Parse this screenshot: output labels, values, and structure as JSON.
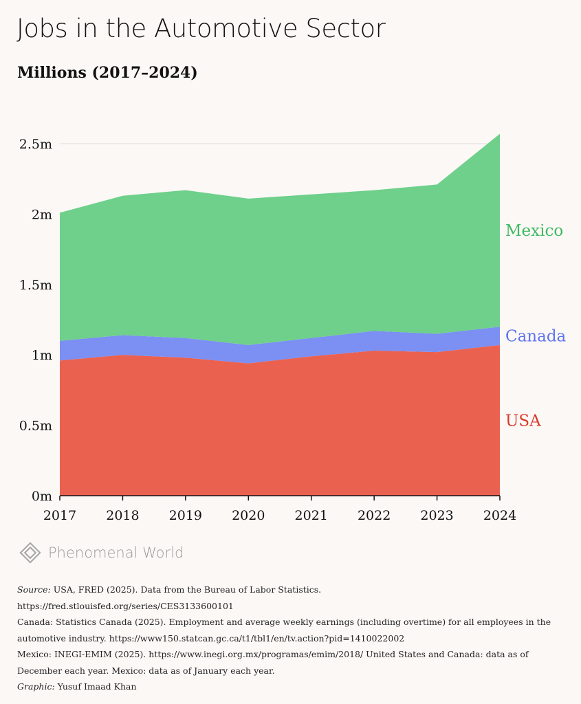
{
  "title": "Jobs in the Automotive Sector",
  "subtitle": "Millions (2017–2024)",
  "brand": "Phenomenal World",
  "chart_data": {
    "type": "area",
    "stacked": true,
    "x": [
      2017,
      2018,
      2019,
      2020,
      2021,
      2022,
      2023,
      2024
    ],
    "ylim": [
      0,
      2.5
    ],
    "yticks": [
      0,
      0.5,
      1,
      1.5,
      2,
      2.5
    ],
    "ytick_labels": [
      "0m",
      "0.5m",
      "1m",
      "1.5m",
      "2m",
      "2.5m"
    ],
    "grid": true,
    "series": [
      {
        "name": "USA",
        "color": "#ea6150",
        "values": [
          0.96,
          1.0,
          0.98,
          0.94,
          0.99,
          1.03,
          1.02,
          1.07
        ]
      },
      {
        "name": "Canada",
        "color": "#7c8ff2",
        "values": [
          0.14,
          0.14,
          0.14,
          0.13,
          0.13,
          0.14,
          0.13,
          0.13
        ]
      },
      {
        "name": "Mexico",
        "color": "#6ed08b",
        "values": [
          0.91,
          0.99,
          1.05,
          1.04,
          1.02,
          1.0,
          1.06,
          1.37
        ]
      }
    ]
  },
  "notes": {
    "source_label": "Source:",
    "source_text": "USA, FRED (2025). Data from the Bureau of Labor Statistics.",
    "source_url": "https://fred.stlouisfed.org/series/CES3133600101",
    "canada_line": "Canada: Statistics Canada (2025). Employment and average weekly earnings (including overtime) for all employees in the automotive industry. https://www150.statcan.gc.ca/t1/tbl1/en/tv.action?pid=1410022002",
    "mexico_line": "Mexico: INEGI-EMIM (2025). https://www.inegi.org.mx/programas/emim/2018/ United States and Canada: data as of December each year. Mexico: data as of January each year.",
    "graphic_label": "Graphic:",
    "graphic_text": "Yusuf Imaad Khan"
  }
}
